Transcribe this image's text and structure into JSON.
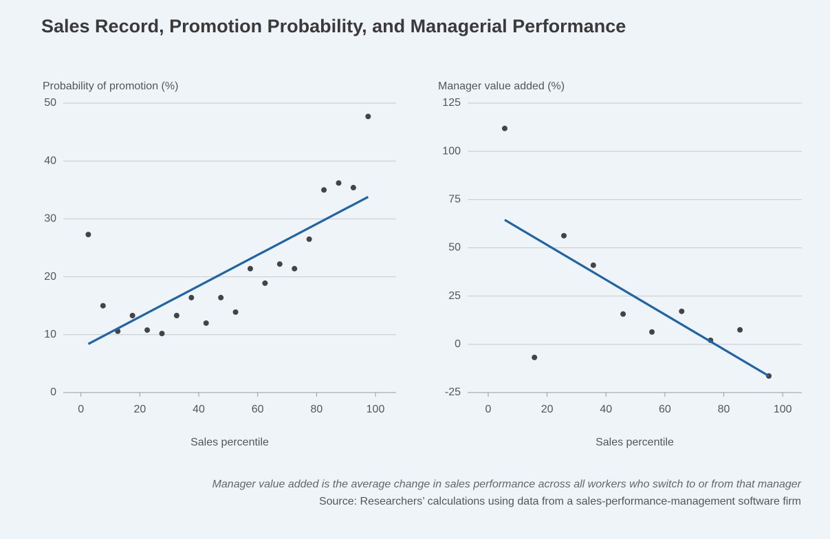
{
  "title": "Sales Record, Promotion Probability, and Managerial Performance",
  "note": "Manager value added is the average change in sales performance across all workers who switch to or from that manager",
  "source": "Source: Researchers’ calculations using data from a sales-performance-management software firm",
  "chart_data": [
    {
      "type": "scatter",
      "y_label": "Probability of promotion (%)",
      "x_label": "Sales percentile",
      "x": [
        2.5,
        7.5,
        12.5,
        17.5,
        22.5,
        27.5,
        32.5,
        37.5,
        42.5,
        47.5,
        52.5,
        57.5,
        62.5,
        67.5,
        72.5,
        77.5,
        82.5,
        87.5,
        92.5,
        97.5
      ],
      "values": [
        27.3,
        15.0,
        10.6,
        13.3,
        10.8,
        10.2,
        13.3,
        16.4,
        12.0,
        16.4,
        13.9,
        21.4,
        18.9,
        22.2,
        21.4,
        26.5,
        35.0,
        36.2,
        35.4,
        47.7
      ],
      "color": "#444444",
      "fit": {
        "x": [
          2.5,
          97.5
        ],
        "values": [
          8.4,
          33.8
        ],
        "color": "#1f64a6"
      },
      "xlim": [
        -6,
        107
      ],
      "xticks": [
        0,
        20,
        40,
        60,
        80,
        100
      ],
      "ylim": [
        0,
        50
      ],
      "yticks": [
        0,
        10,
        20,
        30,
        40,
        50
      ],
      "grid": true
    },
    {
      "type": "scatter",
      "y_label": "Manager value added (%)",
      "x_label": "Sales percentile",
      "x": [
        5.6,
        15.7,
        25.7,
        35.7,
        45.8,
        55.6,
        65.7,
        75.5,
        85.5,
        95.3
      ],
      "values": [
        111.9,
        -6.8,
        56.3,
        41.0,
        15.7,
        6.4,
        17.1,
        2.1,
        7.5,
        -16.4
      ],
      "color": "#444444",
      "fit": {
        "x": [
          5.6,
          95.3
        ],
        "values": [
          64.5,
          -16.4
        ],
        "color": "#1f64a6"
      },
      "xlim": [
        -7,
        106.5
      ],
      "xticks": [
        0,
        20,
        40,
        60,
        80,
        100
      ],
      "ylim": [
        -25,
        125
      ],
      "yticks": [
        -25,
        0,
        25,
        50,
        75,
        100,
        125
      ],
      "grid": true
    }
  ]
}
